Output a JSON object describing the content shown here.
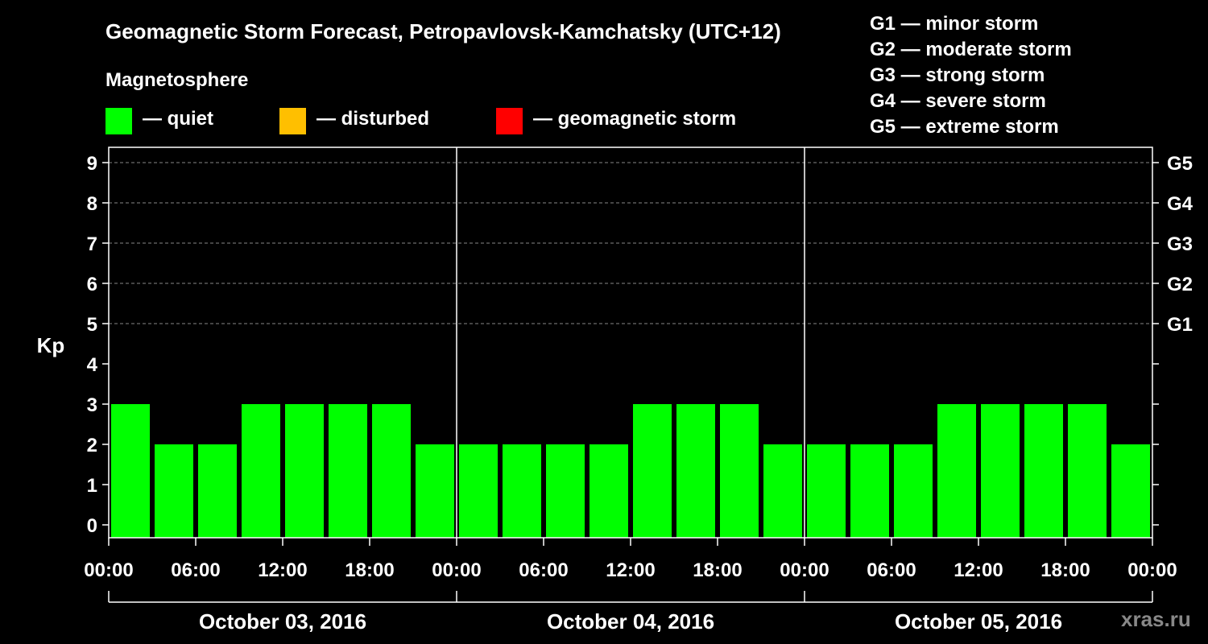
{
  "chart_data": {
    "type": "bar",
    "title": "Geomagnetic Storm Forecast, Petropavlovsk-Kamchatsky (UTC+12)",
    "ylabel": "Kp",
    "ylim": [
      0,
      9
    ],
    "yticks": [
      "0",
      "1",
      "2",
      "3",
      "4",
      "5",
      "6",
      "7",
      "8",
      "9"
    ],
    "right_ticks": [
      {
        "value": 5,
        "label": "G1"
      },
      {
        "value": 6,
        "label": "G2"
      },
      {
        "value": 7,
        "label": "G3"
      },
      {
        "value": 8,
        "label": "G4"
      },
      {
        "value": 9,
        "label": "G5"
      }
    ],
    "grid_lines": [
      5,
      6,
      7,
      8,
      9
    ],
    "x_tick_labels": [
      "00:00",
      "06:00",
      "12:00",
      "18:00",
      "00:00",
      "06:00",
      "12:00",
      "18:00",
      "00:00",
      "06:00",
      "12:00",
      "18:00",
      "00:00"
    ],
    "days": [
      "October 03, 2016",
      "October 04, 2016",
      "October 05, 2016"
    ],
    "interval_hours": 3,
    "values": [
      3,
      2,
      2,
      3,
      3,
      3,
      3,
      2,
      2,
      2,
      2,
      2,
      3,
      3,
      3,
      2,
      2,
      2,
      2,
      3,
      3,
      3,
      3,
      2
    ],
    "colors": {
      "quiet": "#00ff00",
      "disturbed": "#ffbf00",
      "storm": "#ff0000"
    }
  },
  "magnetosphere": {
    "title": "Magnetosphere",
    "legend": [
      {
        "label": "— quiet",
        "color": "#00ff00"
      },
      {
        "label": "— disturbed",
        "color": "#ffbf00"
      },
      {
        "label": "— geomagnetic storm",
        "color": "#ff0000"
      }
    ]
  },
  "storm_scale": [
    "G1 — minor storm",
    "G2 — moderate storm",
    "G3 — strong storm",
    "G4 — severe storm",
    "G5 — extreme storm"
  ],
  "watermark": "xras.ru"
}
